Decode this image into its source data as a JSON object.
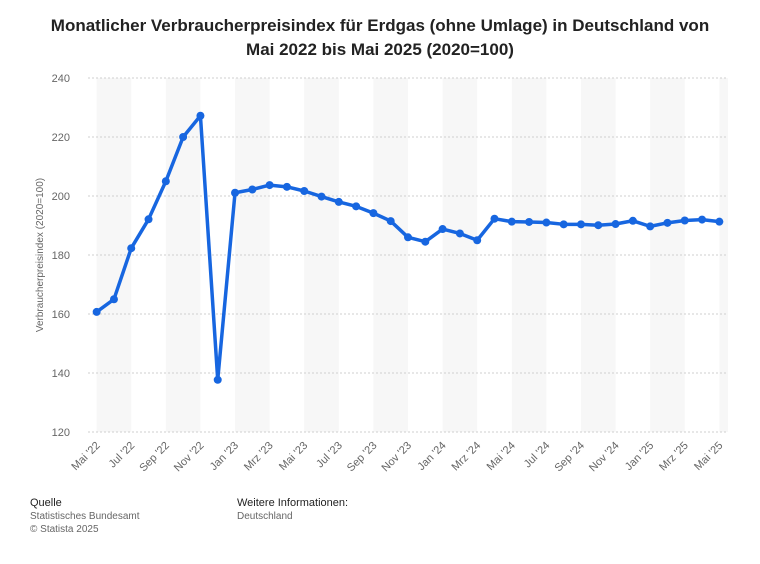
{
  "title_lines": [
    "Monatlicher Verbraucherpreisindex für Erdgas (ohne Umlage) in Deutschland von",
    "Mai 2022 bis Mai 2025 (2020=100)"
  ],
  "colors": {
    "line": "#1766e0",
    "band": "#f7f7f7",
    "grid": "#cfcfcf",
    "tick_text": "#666666"
  },
  "chart_data": {
    "type": "line",
    "title": "Monatlicher Verbraucherpreisindex für Erdgas (ohne Umlage) in Deutschland von Mai 2022 bis Mai 2025 (2020=100)",
    "ylabel": "Verbraucherpreisindex (2020=100)",
    "xlabel": "",
    "ylim": [
      120,
      240
    ],
    "yticks": [
      120,
      140,
      160,
      180,
      200,
      220,
      240
    ],
    "x_tick_labels": [
      "Mai '22",
      "Jul '22",
      "Sep '22",
      "Nov '22",
      "Jan '23",
      "Mrz '23",
      "Mai '23",
      "Jul '23",
      "Sep '23",
      "Nov '23",
      "Jan '24",
      "Mrz '24",
      "Mai '24",
      "Jul '24",
      "Sep '24",
      "Nov '24",
      "Jan '25",
      "Mrz '25",
      "Mai '25"
    ],
    "categories": [
      "Mai '22",
      "Jun '22",
      "Jul '22",
      "Aug '22",
      "Sep '22",
      "Okt '22",
      "Nov '22",
      "Dez '22",
      "Jan '23",
      "Feb '23",
      "Mrz '23",
      "Apr '23",
      "Mai '23",
      "Jun '23",
      "Jul '23",
      "Aug '23",
      "Sep '23",
      "Okt '23",
      "Nov '23",
      "Dez '23",
      "Jan '24",
      "Feb '24",
      "Mrz '24",
      "Apr '24",
      "Mai '24",
      "Jun '24",
      "Jul '24",
      "Aug '24",
      "Sep '24",
      "Okt '24",
      "Nov '24",
      "Dez '24",
      "Jan '25",
      "Feb '25",
      "Mrz '25",
      "Apr '25",
      "Mai '25"
    ],
    "grid": true,
    "legend": "none",
    "series": [
      {
        "values": [
          160.7,
          165.0,
          182.3,
          192.1,
          205.0,
          220.0,
          227.2,
          137.7,
          201.1,
          202.2,
          203.7,
          203.1,
          201.7,
          199.8,
          198.0,
          196.5,
          194.2,
          191.5,
          186.0,
          184.5,
          188.8,
          187.3,
          185.0,
          192.3,
          191.3,
          191.2,
          191.0,
          190.4,
          190.4,
          190.1,
          190.5,
          191.6,
          189.7,
          190.9,
          191.7,
          192.0,
          191.3
        ]
      }
    ]
  },
  "footer": {
    "source_heading": "Quelle",
    "source_lines": [
      "Statistisches Bundesamt",
      "© Statista 2025"
    ],
    "info_heading": "Weitere Informationen:",
    "info_lines": [
      "Deutschland"
    ]
  }
}
